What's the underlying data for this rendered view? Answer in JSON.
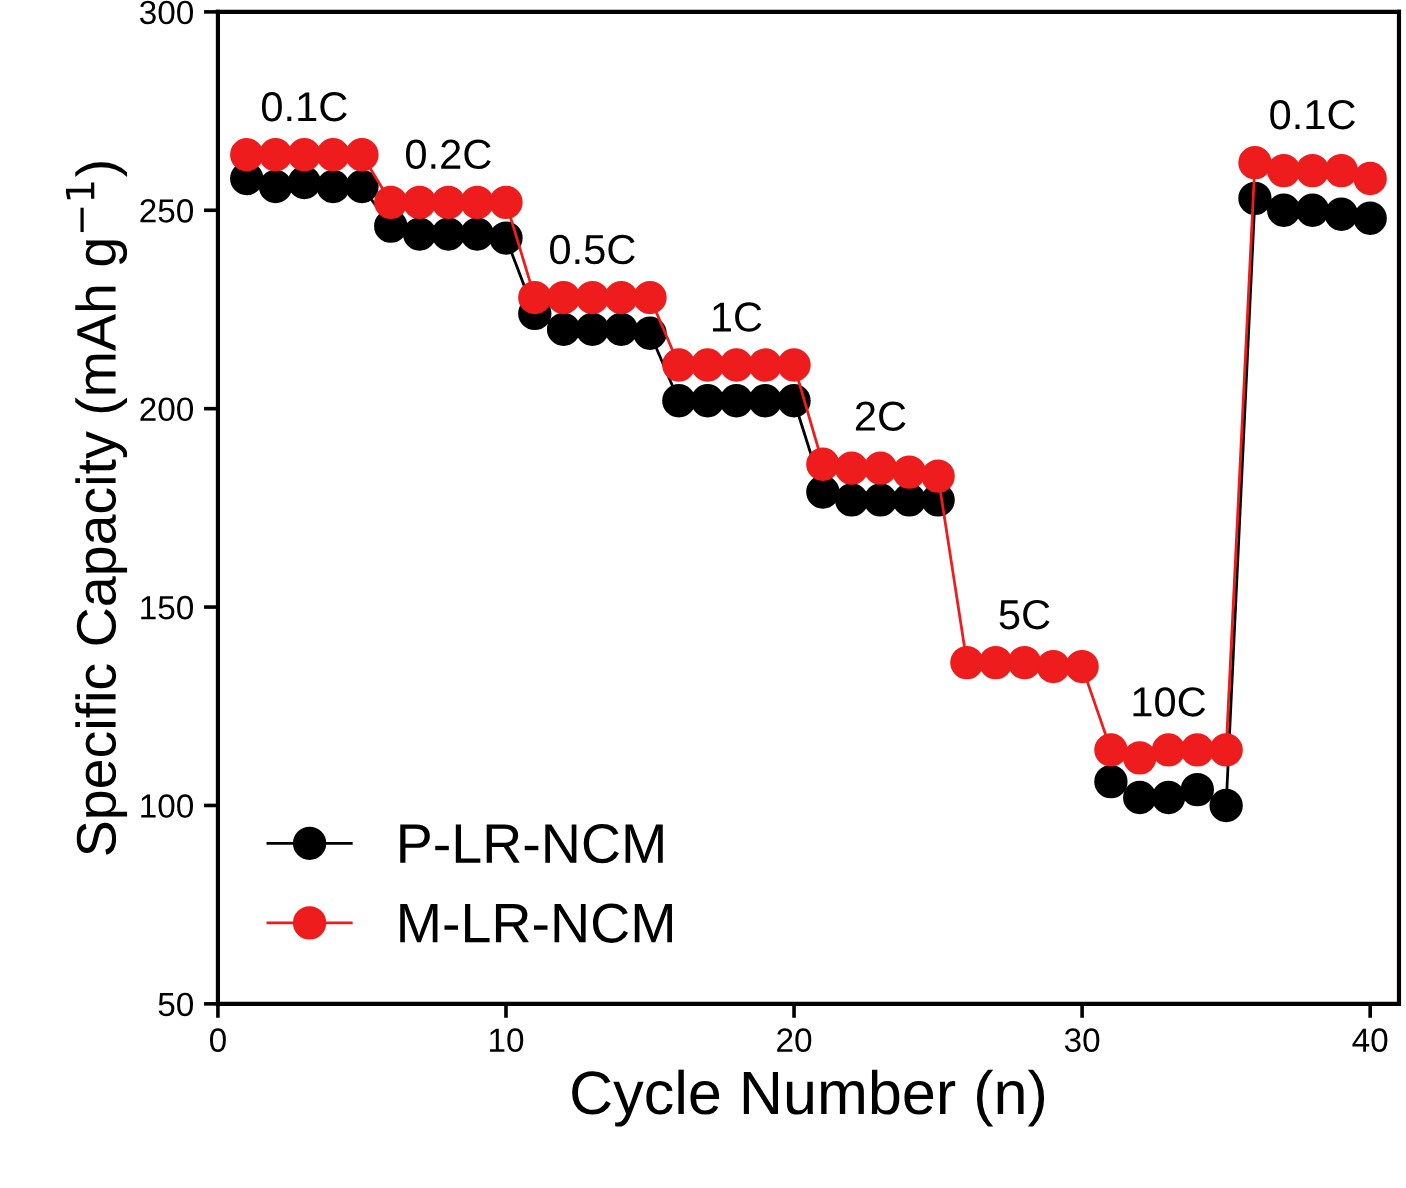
{
  "chart_data": {
    "type": "line",
    "xlabel": "Cycle Number (n)",
    "ylabel": "Specific Capacity (mAh g$^{−1}$)",
    "x": [
      1,
      2,
      3,
      4,
      5,
      6,
      7,
      8,
      9,
      10,
      11,
      12,
      13,
      14,
      15,
      16,
      17,
      18,
      19,
      20,
      21,
      22,
      23,
      24,
      25,
      26,
      27,
      28,
      29,
      30,
      31,
      32,
      33,
      34,
      35,
      36,
      37,
      38,
      39,
      40
    ],
    "series": [
      {
        "name": "P-LR-NCM",
        "color": "#000000",
        "values": [
          258,
          256,
          257,
          256,
          256,
          246,
          244,
          244,
          244,
          243,
          224,
          220,
          220,
          220,
          219,
          202,
          202,
          202,
          202,
          202,
          179,
          177,
          177,
          177,
          177,
          null,
          null,
          null,
          null,
          null,
          106,
          102,
          102,
          104,
          100,
          253,
          250,
          250,
          249,
          248
        ]
      },
      {
        "name": "M-LR-NCM",
        "color": "#ee1c1c",
        "values": [
          264,
          264,
          264,
          264,
          264,
          252,
          252,
          252,
          252,
          252,
          228,
          228,
          228,
          228,
          228,
          211,
          211,
          211,
          211,
          211,
          186,
          185,
          185,
          184,
          183,
          136,
          136,
          136,
          135,
          135,
          114,
          112,
          114,
          114,
          114,
          262,
          260,
          260,
          260,
          258
        ]
      }
    ],
    "xlim": [
      0,
      41
    ],
    "xticks": [
      0,
      10,
      20,
      30,
      40
    ],
    "ylim": [
      50,
      300
    ],
    "yticks": [
      50,
      100,
      150,
      200,
      250,
      300
    ],
    "marker": "circle",
    "line_style": "solid",
    "legend": "bottom left",
    "grid": false,
    "annotations": [
      "0.1C",
      "0.2C",
      "0.5C",
      "1C",
      "2C",
      "5C",
      "10C",
      "0.1C"
    ]
  }
}
